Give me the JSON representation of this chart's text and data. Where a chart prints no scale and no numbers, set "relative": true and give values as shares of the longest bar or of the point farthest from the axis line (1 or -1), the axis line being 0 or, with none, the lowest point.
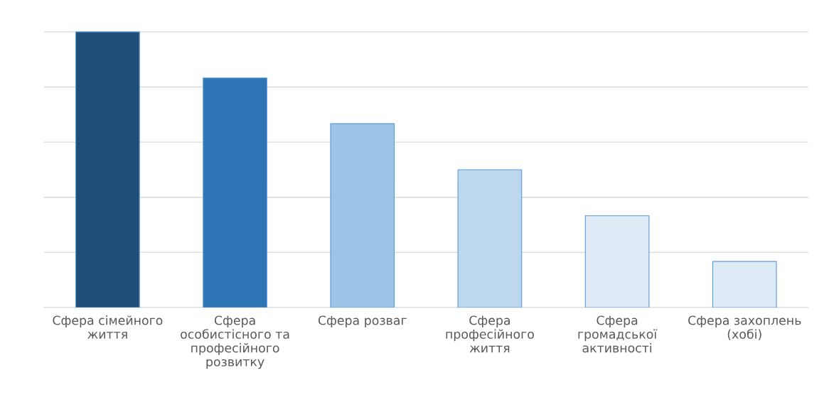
{
  "chart_data": {
    "type": "bar",
    "relative": true,
    "grid": "y",
    "categories": [
      "Сфера сімейного\nжиття",
      "Сфера\nособистісного та\nпрофесійного\nрозвитку",
      "Сфера розваг",
      "Сфера\nпрофесійного\nжиття",
      "Сфера\nгромадської\nактивності",
      "Сфера захоплень\n(хобі)"
    ],
    "values": [
      1,
      0.833,
      0.667,
      0.5,
      0.333,
      0.167
    ],
    "colors": [
      "#1f4e79",
      "#2e75b6",
      "#9dc3e6",
      "#bdd7ee",
      "#deebf7",
      "#deebf7"
    ]
  }
}
